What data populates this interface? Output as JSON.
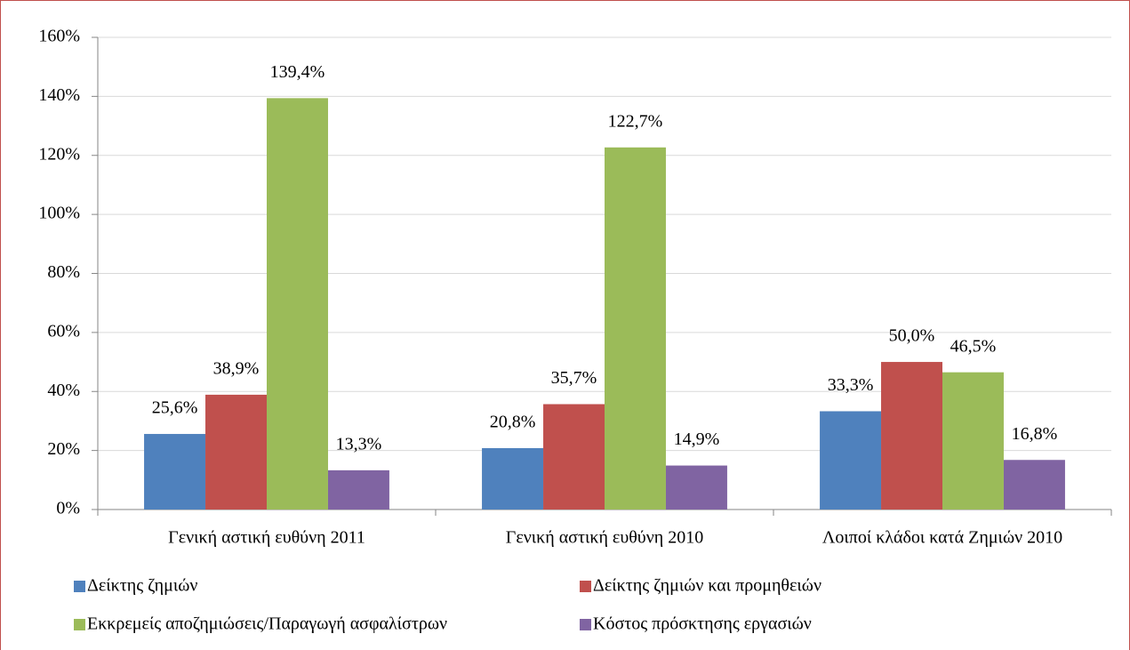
{
  "chart_data": {
    "type": "bar",
    "categories": [
      "Γενική αστική ευθύνη 2011",
      "Γενική αστική ευθύνη 2010",
      "Λοιποί κλάδοι κατά Ζημιών 2010"
    ],
    "series": [
      {
        "name": "Δείκτης ζημιών",
        "color": "#4f81bd",
        "values": [
          25.6,
          20.8,
          33.3
        ],
        "value_labels": [
          "25,6%",
          "20,8%",
          "33,3%"
        ]
      },
      {
        "name": "Δείκτης ζημιών και προμηθειών",
        "color": "#c0504d",
        "values": [
          38.9,
          35.7,
          50.0
        ],
        "value_labels": [
          "38,9%",
          "35,7%",
          "50,0%"
        ]
      },
      {
        "name": "Εκκρεμείς αποζημιώσεις/Παραγωγή ασφαλίστρων",
        "color": "#9bbb59",
        "values": [
          139.4,
          122.7,
          46.5
        ],
        "value_labels": [
          "139,4%",
          "122,7%",
          "46,5%"
        ]
      },
      {
        "name": "Κόστος πρόσκτησης εργασιών",
        "color": "#8064a2",
        "values": [
          13.3,
          14.9,
          16.8
        ],
        "value_labels": [
          "13,3%",
          "14,9%",
          "16,8%"
        ]
      }
    ],
    "ylim": [
      0,
      160
    ],
    "yticks": [
      {
        "value": 0,
        "label": "0%"
      },
      {
        "value": 20,
        "label": "20%"
      },
      {
        "value": 40,
        "label": "40%"
      },
      {
        "value": 60,
        "label": "60%"
      },
      {
        "value": 80,
        "label": "80%"
      },
      {
        "value": 100,
        "label": "100%"
      },
      {
        "value": 120,
        "label": "120%"
      },
      {
        "value": 140,
        "label": "140%"
      },
      {
        "value": 160,
        "label": "160%"
      }
    ],
    "grid": true,
    "legend": "bottom"
  }
}
